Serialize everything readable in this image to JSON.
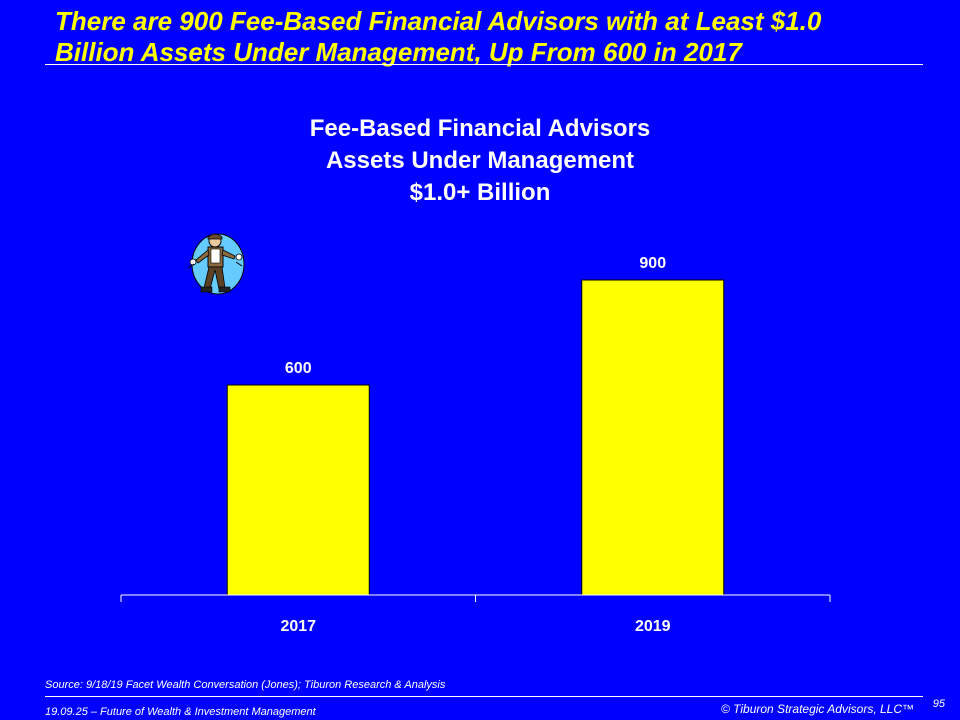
{
  "slide": {
    "headline_line1": "There are 900 Fee-Based Financial Advisors with at Least $1.0",
    "headline_line2": "Billion Assets Under Management, Up From 600 in 2017",
    "source": "Source:  9/18/19 Facet Wealth Conversation (Jones); Tiburon Research & Analysis",
    "footer_left": "19.09.25 – Future of Wealth & Investment Management",
    "footer_right": "© Tiburon Strategic Advisors, LLC™",
    "page_number": "95"
  },
  "chart_data": {
    "type": "bar",
    "title_lines": [
      "Fee-Based Financial Advisors",
      "Assets Under Management",
      "$1.0+ Billion"
    ],
    "categories": [
      "2017",
      "2019"
    ],
    "values": [
      600,
      900
    ],
    "data_labels": [
      "600",
      "900"
    ],
    "xlabel": "",
    "ylabel": "",
    "ylim": [
      0,
      1000
    ],
    "grid": false,
    "bar_color": "#FFFF00",
    "background_color": "#0000FF"
  },
  "icons": {
    "clipart": "worker-with-wrench-icon"
  }
}
